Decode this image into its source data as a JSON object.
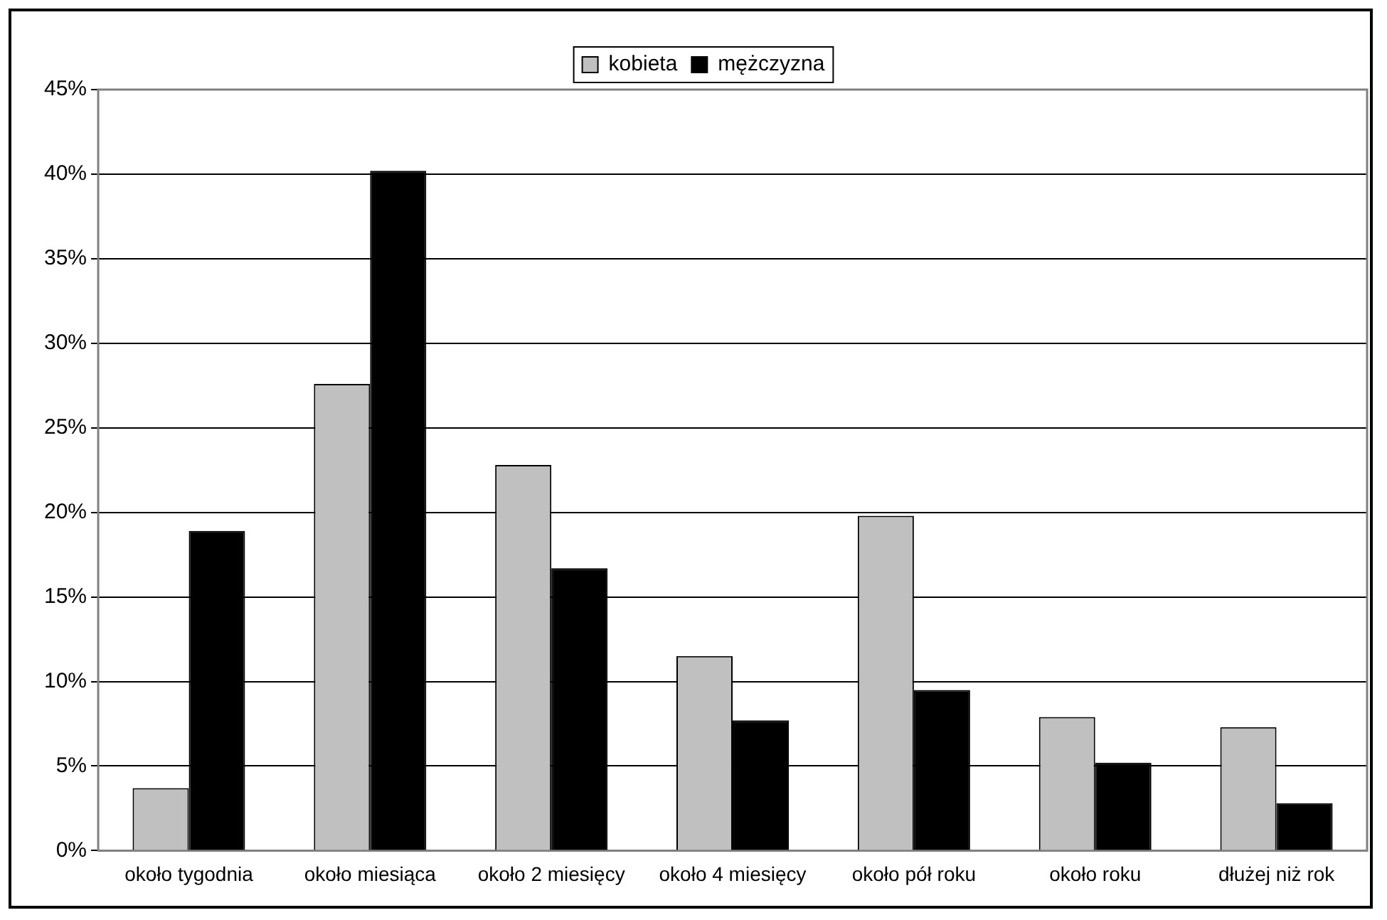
{
  "chart_data": {
    "type": "bar",
    "categories": [
      "około tygodnia",
      "około miesiąca",
      "około 2 miesięcy",
      "około 4 miesięcy",
      "około pół roku",
      "około roku",
      "dłużej niż rok"
    ],
    "series": [
      {
        "name": "kobieta",
        "color": "#c0c0c0",
        "values": [
          3.7,
          27.6,
          22.8,
          11.5,
          19.8,
          7.9,
          7.3
        ]
      },
      {
        "name": "mężczyzna",
        "color": "#000000",
        "values": [
          18.9,
          40.2,
          16.7,
          7.7,
          9.5,
          5.2,
          2.8
        ]
      }
    ],
    "ylim": [
      0,
      45
    ],
    "yticks": [
      {
        "value": 0,
        "label": "0%"
      },
      {
        "value": 5,
        "label": "5%"
      },
      {
        "value": 10,
        "label": "10%"
      },
      {
        "value": 15,
        "label": "15%"
      },
      {
        "value": 20,
        "label": "20%"
      },
      {
        "value": 25,
        "label": "25%"
      },
      {
        "value": 30,
        "label": "30%"
      },
      {
        "value": 35,
        "label": "35%"
      },
      {
        "value": 40,
        "label": "40%"
      },
      {
        "value": 45,
        "label": "45%"
      }
    ],
    "grid": "y",
    "legend": "top"
  }
}
